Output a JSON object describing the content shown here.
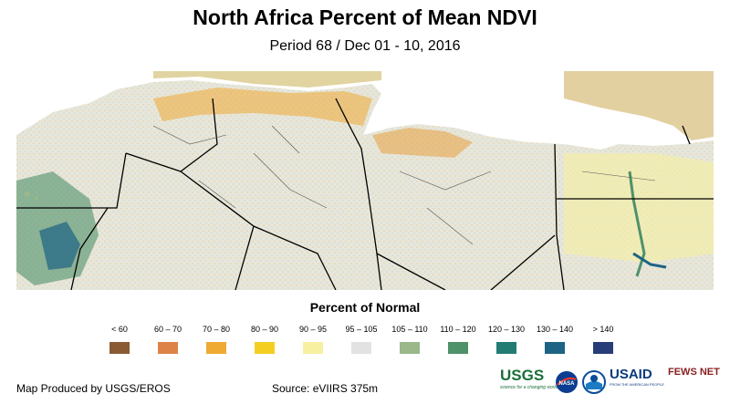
{
  "title": "North Africa Percent of Mean NDVI",
  "subtitle": "Period 68 / Dec 01 - 10, 2016",
  "legend": {
    "title": "Percent of Normal",
    "items": [
      {
        "label": "< 60",
        "color": "#8a5a33"
      },
      {
        "label": "60 – 70",
        "color": "#dd8347"
      },
      {
        "label": "70 – 80",
        "color": "#efaa34"
      },
      {
        "label": "80 – 90",
        "color": "#f5ce22"
      },
      {
        "label": "90 – 95",
        "color": "#f7f0a0"
      },
      {
        "label": "95 – 105",
        "color": "#e2e2e2"
      },
      {
        "label": "105 – 110",
        "color": "#9ab88a"
      },
      {
        "label": "110 – 120",
        "color": "#4f9169"
      },
      {
        "label": "120 – 130",
        "color": "#237c74"
      },
      {
        "label": "130 – 140",
        "color": "#1d6384"
      },
      {
        "label": "> 140",
        "color": "#263d78"
      }
    ]
  },
  "footer": {
    "produced_by": "Map Produced by USGS/EROS",
    "source": "Source: eVIIRS 375m"
  },
  "logos": {
    "usgs": "USGS",
    "usgs_tagline": "science for a changing world",
    "nasa": "NASA",
    "usaid": "USAID",
    "usaid_tagline": "FROM THE AMERICAN PEOPLE",
    "fews": "FEWS NET"
  }
}
